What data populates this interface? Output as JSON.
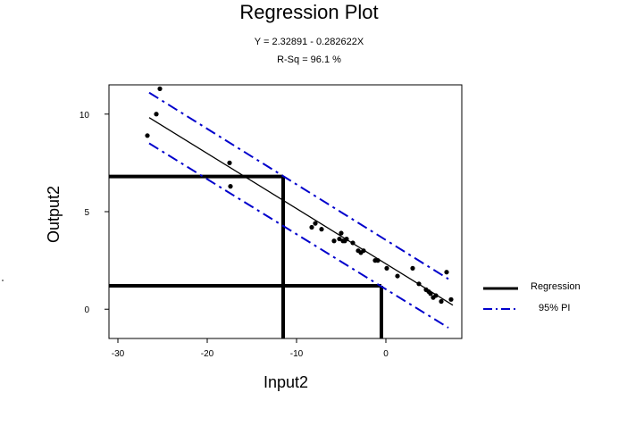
{
  "chart_data": {
    "type": "scatter",
    "title": "Regression Plot",
    "equation": "Y = 2.32891 - 0.282622X",
    "r_squared": "R-Sq = 96.1 %",
    "xlabel": "Input2",
    "ylabel": "Output2",
    "xlim": [
      -31,
      8.5
    ],
    "ylim": [
      -1.5,
      11.5
    ],
    "xticks": [
      -30,
      -20,
      -10,
      0
    ],
    "yticks": [
      0,
      5,
      10
    ],
    "legend_position": "right",
    "series": [
      {
        "name": "Regression",
        "type": "line",
        "color": "#000000",
        "x": [
          -26.5,
          7.5
        ],
        "y": [
          9.82,
          0.21
        ]
      },
      {
        "name": "95% PI",
        "type": "dash-dot-line",
        "color": "#0000cc",
        "upper": {
          "x": [
            -26.5,
            7.0
          ],
          "y": [
            11.1,
            1.55
          ]
        },
        "lower": {
          "x": [
            -26.5,
            7.0
          ],
          "y": [
            8.5,
            -0.95
          ]
        }
      }
    ],
    "points": {
      "x": [
        -26.7,
        -25.7,
        -25.3,
        -17.5,
        -17.4,
        -8.3,
        -7.9,
        -7.2,
        -5.8,
        -5.2,
        -5.0,
        -4.8,
        -4.6,
        -4.4,
        -3.7,
        -3.1,
        -2.8,
        -2.5,
        -1.2,
        -0.9,
        0.1,
        1.3,
        3.0,
        3.7,
        4.5,
        4.8,
        5.0,
        5.3,
        5.6,
        6.2,
        6.8,
        7.3
      ],
      "y": [
        8.9,
        10.0,
        11.3,
        7.5,
        6.3,
        4.2,
        4.4,
        4.1,
        3.5,
        3.6,
        3.9,
        3.5,
        3.5,
        3.6,
        3.4,
        3.0,
        2.9,
        3.0,
        2.5,
        2.5,
        2.1,
        1.7,
        2.1,
        1.3,
        1.0,
        0.9,
        0.8,
        0.6,
        0.7,
        0.4,
        1.9,
        0.5
      ]
    },
    "reference_lines": [
      {
        "y": 6.8,
        "x_start": -31,
        "x_end": -11.5
      },
      {
        "x": -11.5,
        "y_start": -1.5,
        "y_end": 6.8
      },
      {
        "y": 1.2,
        "x_start": -31,
        "x_end": -0.5
      },
      {
        "x": -0.5,
        "y_start": -1.5,
        "y_end": 1.2
      }
    ]
  }
}
